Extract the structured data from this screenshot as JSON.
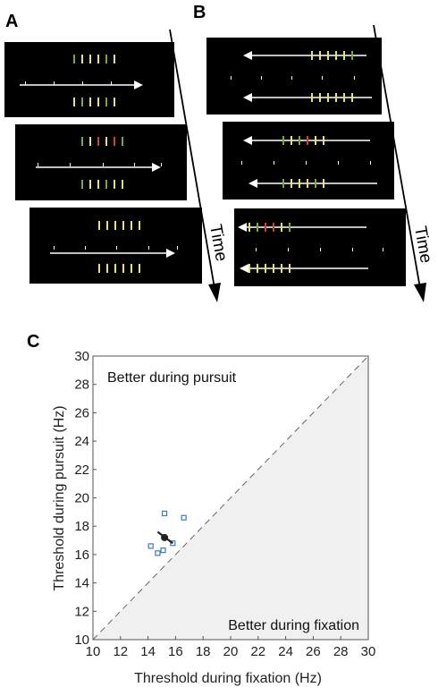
{
  "panels": {
    "a_label": "A",
    "b_label": "B",
    "c_label": "C",
    "time_label_a": "Time",
    "time_label_b": "Time"
  },
  "colors": {
    "stimulus_yellow": "#e8e07a",
    "stimulus_green": "#7aa83a",
    "stimulus_red": "#d04030",
    "marker_white": "#ffffff",
    "panel_background": "#000000",
    "shaded_region": "#f0f0f0",
    "scatter_square": "#3b7bbf",
    "mean_point": "#222222"
  },
  "chart_data": {
    "type": "scatter",
    "xlabel": "Threshold during fixation (Hz)",
    "ylabel": "Threshold during pursuit (Hz)",
    "xlim": [
      10,
      30
    ],
    "ylim": [
      10,
      30
    ],
    "xticks": [
      "10",
      "12",
      "14",
      "16",
      "18",
      "20",
      "22",
      "24",
      "26",
      "28",
      "30"
    ],
    "yticks": [
      "10",
      "12",
      "14",
      "16",
      "18",
      "20",
      "22",
      "24",
      "26",
      "28",
      "30"
    ],
    "grid": false,
    "annotations": {
      "upper_left": "Better during pursuit",
      "lower_right": "Better during fixation"
    },
    "unity_line": true,
    "individual_points": [
      {
        "x": 14.2,
        "y": 16.6
      },
      {
        "x": 14.7,
        "y": 16.1
      },
      {
        "x": 15.1,
        "y": 16.3
      },
      {
        "x": 15.2,
        "y": 18.9
      },
      {
        "x": 15.8,
        "y": 16.8
      },
      {
        "x": 16.6,
        "y": 18.6
      }
    ],
    "mean_point": {
      "x": 15.2,
      "y": 17.2
    },
    "error_bar": {
      "x": [
        14.7,
        15.8
      ],
      "y": [
        17.6,
        16.8
      ]
    }
  }
}
